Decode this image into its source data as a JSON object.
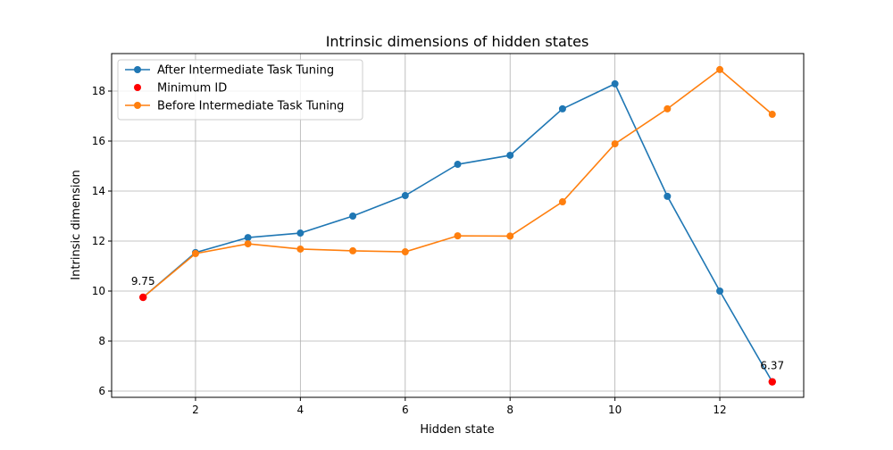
{
  "chart_data": {
    "type": "line",
    "title": "Intrinsic dimensions of hidden states",
    "xlabel": "Hidden state",
    "ylabel": "Intrinsic dimension",
    "xlim": [
      0.4,
      13.6
    ],
    "ylim": [
      5.75,
      19.5
    ],
    "xticks": [
      2,
      4,
      6,
      8,
      10,
      12
    ],
    "yticks": [
      6,
      8,
      10,
      12,
      14,
      16,
      18
    ],
    "grid": true,
    "legend_position": "upper-left",
    "x": [
      1,
      2,
      3,
      4,
      5,
      6,
      7,
      8,
      9,
      10,
      11,
      12,
      13
    ],
    "series": [
      {
        "name": "After Intermediate Task Tuning",
        "color": "#1f77b4",
        "values": [
          9.75,
          11.54,
          12.14,
          12.32,
          13.0,
          13.82,
          15.07,
          15.43,
          17.29,
          18.29,
          13.79,
          10.0,
          6.37
        ]
      },
      {
        "name": "Minimum ID",
        "color": "#ff0000",
        "type": "scatter",
        "points": [
          [
            1,
            9.75
          ],
          [
            13,
            6.37
          ]
        ]
      },
      {
        "name": "Before Intermediate Task Tuning",
        "color": "#ff7f0e",
        "values": [
          9.75,
          11.5,
          11.89,
          11.68,
          11.61,
          11.57,
          12.21,
          12.2,
          13.57,
          15.89,
          17.29,
          18.86,
          17.07
        ]
      }
    ],
    "annotations": [
      {
        "text": "9.75",
        "x": 1,
        "y": 9.75
      },
      {
        "text": "6.37",
        "x": 13,
        "y": 6.37
      }
    ]
  }
}
